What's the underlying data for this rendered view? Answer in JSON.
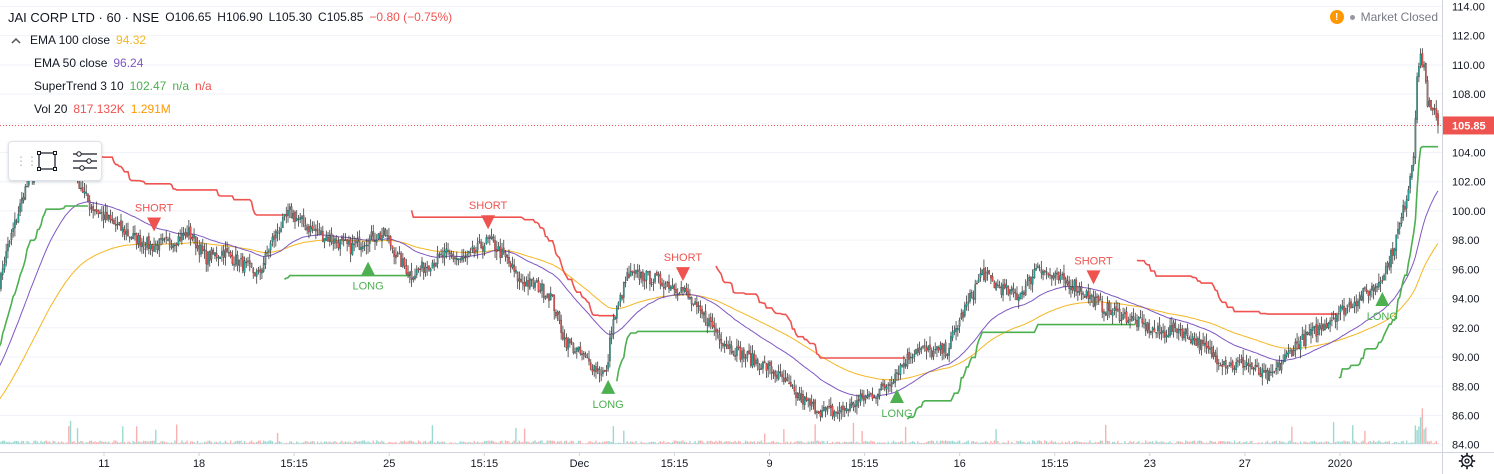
{
  "header": {
    "symbol": "JAI CORP LTD · 60 · NSE",
    "open_label": "O",
    "open": "106.65",
    "high_label": "H",
    "high": "106.90",
    "low_label": "L",
    "low": "105.30",
    "close_label": "C",
    "close": "105.85",
    "change": "−0.80 (−0.75%)"
  },
  "indicators": [
    {
      "name": "EMA 100 close",
      "value": "94.32",
      "color": "#f5b623"
    },
    {
      "name": "EMA 50 close",
      "value": "96.24",
      "color": "#7e57c2"
    },
    {
      "name": "SuperTrend 3 10",
      "value": "102.47",
      "extra1": "n/a",
      "extra2": "n/a",
      "color_value": "#4caf50",
      "color_na": "#ef5350"
    },
    {
      "name": "Vol 20",
      "value": "817.132K",
      "value2": "1.291M",
      "color_value": "#ef5350",
      "color_value2": "#ff9800"
    }
  ],
  "market_status": "Market Closed",
  "current_price_label": "105.85",
  "colors": {
    "up": "#26a69a",
    "down": "#ef5350",
    "ema100": "#f5b623",
    "ema50": "#7e57c2",
    "st_up": "#4caf50",
    "st_down": "#ef5350",
    "price_line": "#ef5350"
  },
  "chart_data": {
    "type": "candlestick",
    "symbol": "JAI CORP LTD",
    "interval": "60",
    "exchange": "NSE",
    "y_ticks": [
      84,
      86,
      88,
      90,
      92,
      94,
      96,
      98,
      100,
      102,
      104,
      106,
      108,
      110,
      112,
      114
    ],
    "ylim": [
      83.5,
      114.3
    ],
    "x_ticks": [
      "11",
      "18",
      "15:15",
      "25",
      "15:15",
      "Dec",
      "15:15",
      "9",
      "15:15",
      "16",
      "15:15",
      "23",
      "27",
      "2020"
    ],
    "close_anchors": [
      [
        0,
        93.5
      ],
      [
        8,
        97.5
      ],
      [
        18,
        101.5
      ],
      [
        30,
        104.2
      ],
      [
        42,
        103.6
      ],
      [
        48,
        102.2
      ],
      [
        55,
        100.4
      ],
      [
        70,
        99.0
      ],
      [
        80,
        98.2
      ],
      [
        90,
        97.6
      ],
      [
        100,
        97.8
      ],
      [
        112,
        98.5
      ],
      [
        122,
        96.8
      ],
      [
        132,
        97.2
      ],
      [
        142,
        96.4
      ],
      [
        152,
        95.6
      ],
      [
        160,
        98.0
      ],
      [
        170,
        99.9
      ],
      [
        180,
        98.9
      ],
      [
        195,
        98.0
      ],
      [
        205,
        97.5
      ],
      [
        215,
        98.1
      ],
      [
        225,
        98.4
      ],
      [
        232,
        96.8
      ],
      [
        240,
        95.6
      ],
      [
        250,
        96.4
      ],
      [
        260,
        97.0
      ],
      [
        270,
        96.6
      ],
      [
        280,
        97.6
      ],
      [
        285,
        98.0
      ],
      [
        295,
        96.6
      ],
      [
        302,
        95.2
      ],
      [
        312,
        94.9
      ],
      [
        320,
        94.2
      ],
      [
        328,
        91.2
      ],
      [
        335,
        90.4
      ],
      [
        345,
        89.3
      ],
      [
        352,
        88.8
      ],
      [
        355,
        92.0
      ],
      [
        358,
        93.2
      ],
      [
        364,
        95.5
      ],
      [
        372,
        95.6
      ],
      [
        380,
        95.3
      ],
      [
        388,
        95.0
      ],
      [
        396,
        94.6
      ],
      [
        404,
        93.2
      ],
      [
        412,
        92.3
      ],
      [
        420,
        91.0
      ],
      [
        428,
        90.3
      ],
      [
        436,
        89.8
      ],
      [
        444,
        89.3
      ],
      [
        452,
        88.6
      ],
      [
        460,
        87.5
      ],
      [
        468,
        86.8
      ],
      [
        476,
        86.3
      ],
      [
        484,
        86.2
      ],
      [
        492,
        86.6
      ],
      [
        500,
        87.2
      ],
      [
        508,
        87.6
      ],
      [
        514,
        88.2
      ],
      [
        520,
        89.2
      ],
      [
        530,
        90.6
      ],
      [
        540,
        90.3
      ],
      [
        548,
        90.5
      ],
      [
        555,
        92.5
      ],
      [
        562,
        94.2
      ],
      [
        568,
        95.8
      ],
      [
        575,
        95.0
      ],
      [
        582,
        94.5
      ],
      [
        588,
        94.2
      ],
      [
        594,
        94.9
      ],
      [
        600,
        96.4
      ],
      [
        606,
        95.6
      ],
      [
        612,
        95.3
      ],
      [
        620,
        95.0
      ],
      [
        628,
        94.3
      ],
      [
        635,
        93.6
      ],
      [
        642,
        93.1
      ],
      [
        650,
        92.8
      ],
      [
        660,
        92.2
      ],
      [
        670,
        91.6
      ],
      [
        680,
        92.0
      ],
      [
        690,
        91.2
      ],
      [
        698,
        90.4
      ],
      [
        705,
        89.8
      ],
      [
        712,
        89.4
      ],
      [
        720,
        89.6
      ],
      [
        728,
        88.8
      ],
      [
        734,
        88.6
      ],
      [
        740,
        89.6
      ],
      [
        748,
        90.8
      ],
      [
        755,
        91.4
      ],
      [
        762,
        92.0
      ],
      [
        770,
        92.8
      ],
      [
        778,
        93.5
      ],
      [
        786,
        94.2
      ],
      [
        794,
        94.8
      ],
      [
        802,
        96.5
      ],
      [
        808,
        99.0
      ],
      [
        812,
        101.0
      ],
      [
        816,
        104.0
      ],
      [
        818,
        109.5
      ],
      [
        820,
        110.3
      ],
      [
        822,
        110.0
      ],
      [
        824,
        107.5
      ],
      [
        826,
        106.8
      ],
      [
        828,
        106.6
      ],
      [
        830,
        105.85
      ]
    ],
    "candle_count": 831,
    "ema100_last": 94.32,
    "ema50_last": 96.24,
    "supertrend_last": 102.47,
    "volume_last": "817.132K",
    "volume_avg": "1.291M",
    "signals": [
      {
        "label": "SHORT",
        "i": 92,
        "dir": "short"
      },
      {
        "label": "LONG",
        "i": 215,
        "dir": "long"
      },
      {
        "label": "SHORT",
        "i": 284,
        "dir": "short"
      },
      {
        "label": "LONG",
        "i": 353,
        "dir": "long"
      },
      {
        "label": "SHORT",
        "i": 396,
        "dir": "short"
      },
      {
        "label": "LONG",
        "i": 519,
        "dir": "long"
      },
      {
        "label": "SHORT",
        "i": 632,
        "dir": "short"
      },
      {
        "label": "LONG",
        "i": 798,
        "dir": "long"
      }
    ]
  }
}
